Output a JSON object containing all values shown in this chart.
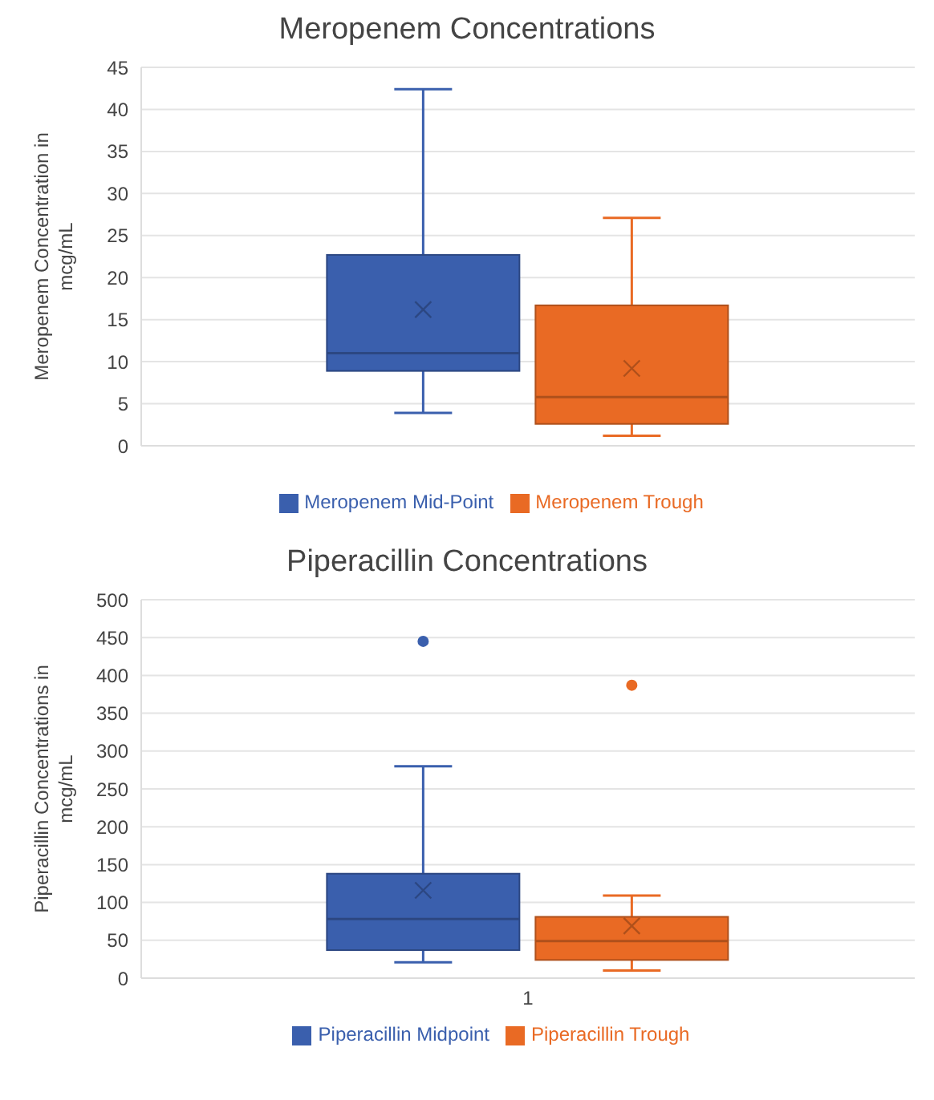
{
  "chart_data": [
    {
      "type": "box",
      "title": "Meropenem Concentrations",
      "ylabel": "Meropenem Concentration in mcg/mL",
      "categories": [
        null
      ],
      "ylim": [
        0,
        45
      ],
      "yticks": [
        0,
        5,
        10,
        15,
        20,
        25,
        30,
        35,
        40,
        45
      ],
      "grid": "y",
      "legend": "bottom",
      "series": [
        {
          "name": "Meropenem Mid-Point",
          "color": "#3a5fad",
          "boxes": [
            {
              "low": 3.9,
              "q1": 8.9,
              "median": 11.0,
              "q3": 22.7,
              "high": 42.4,
              "mean": 16.2
            }
          ]
        },
        {
          "name": "Meropenem Trough",
          "color": "#e96a24",
          "boxes": [
            {
              "low": 1.2,
              "q1": 2.6,
              "median": 5.8,
              "q3": 16.7,
              "high": 27.1,
              "mean": 9.2
            }
          ]
        }
      ]
    },
    {
      "type": "box",
      "title": "Piperacillin Concentrations",
      "ylabel": "Piperacillin Concentrations in mcg/mL",
      "categories": [
        "1"
      ],
      "ylim": [
        0,
        500
      ],
      "yticks": [
        0,
        50,
        100,
        150,
        200,
        250,
        300,
        350,
        400,
        450,
        500
      ],
      "grid": "y",
      "legend": "bottom",
      "series": [
        {
          "name": "Piperacillin Midpoint",
          "color": "#3a5fad",
          "boxes": [
            {
              "low": 21,
              "q1": 37,
              "median": 78,
              "q3": 138,
              "high": 280,
              "mean": 116,
              "outliers": [
                445
              ]
            }
          ]
        },
        {
          "name": "Piperacillin Trough",
          "color": "#e96a24",
          "boxes": [
            {
              "low": 10,
              "q1": 24,
              "median": 49,
              "q3": 81,
              "high": 109,
              "mean": 69,
              "outliers": [
                387
              ]
            }
          ]
        }
      ]
    }
  ]
}
